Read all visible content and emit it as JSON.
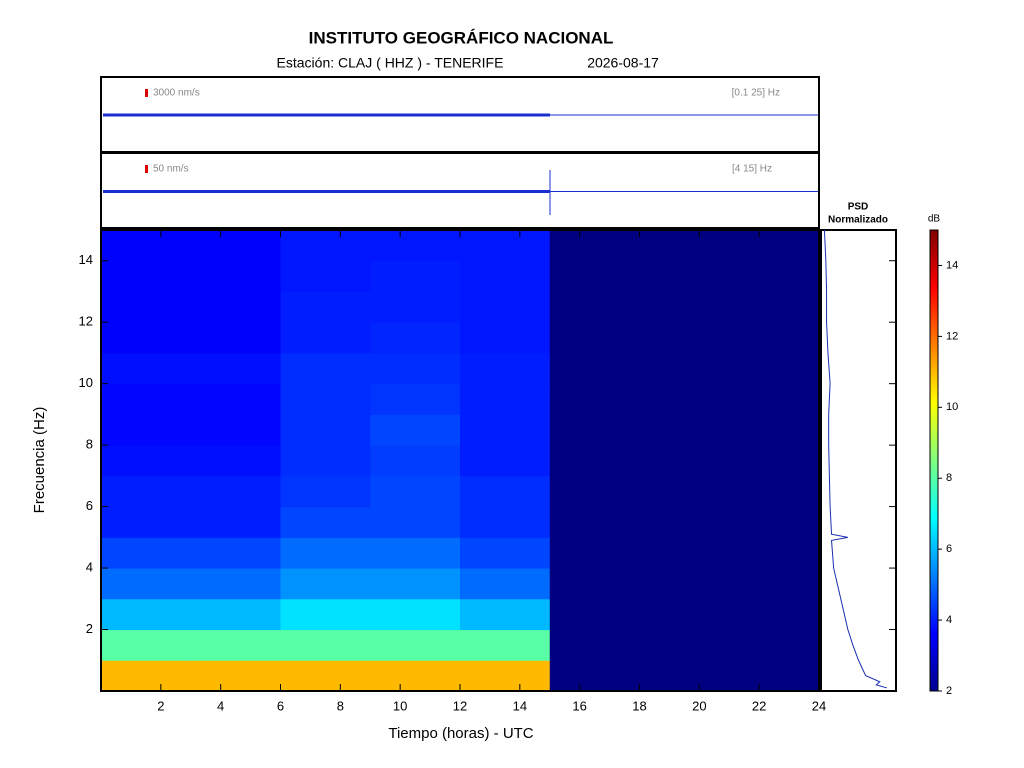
{
  "chart_data": {
    "type": "spectrogram",
    "title": "INSTITUTO GEOGRÁFICO NACIONAL",
    "station": "Estación:  CLAJ ( HHZ ) - TENERIFE",
    "date": "2026-08-17",
    "trace_labels": [
      {
        "scale": "3000 nm/s",
        "band": "[0.1 25] Hz"
      },
      {
        "scale": "50 nm/s",
        "band": "[4 15] Hz"
      }
    ],
    "x_label": "Tiempo (horas) - UTC",
    "y_label": "Frecuencia  (Hz)",
    "xlim": [
      0,
      24
    ],
    "xticks": [
      2,
      4,
      6,
      8,
      10,
      12,
      14,
      16,
      18,
      20,
      22,
      24
    ],
    "ylim": [
      0,
      15
    ],
    "yticks": [
      2,
      4,
      6,
      8,
      10,
      12,
      14
    ],
    "time_bins": [
      0,
      3,
      6,
      9,
      12,
      15,
      24
    ],
    "freq_bins": [
      0,
      1,
      2,
      3,
      4,
      5,
      6,
      7,
      8,
      9,
      10,
      11,
      12,
      13,
      14,
      15
    ],
    "z": [
      [
        11,
        11,
        11,
        11,
        11,
        2
      ],
      [
        8,
        8,
        8,
        8,
        8,
        2
      ],
      [
        6,
        6,
        6.5,
        6.5,
        6,
        2
      ],
      [
        5,
        5,
        5.5,
        5.5,
        5,
        2
      ],
      [
        4.5,
        4.5,
        5,
        5,
        4.5,
        2
      ],
      [
        4,
        4,
        4.5,
        4.5,
        4.2,
        2
      ],
      [
        4,
        4,
        4.3,
        4.5,
        4.2,
        2
      ],
      [
        3.8,
        3.8,
        4.2,
        4.4,
        4,
        2
      ],
      [
        3.7,
        3.7,
        4.2,
        4.5,
        4,
        2
      ],
      [
        3.7,
        3.7,
        4.2,
        4.3,
        4,
        2
      ],
      [
        3.8,
        3.8,
        4.2,
        4.2,
        4,
        2
      ],
      [
        3.6,
        3.6,
        4,
        4.1,
        3.9,
        2
      ],
      [
        3.6,
        3.6,
        4,
        4,
        3.9,
        2
      ],
      [
        3.6,
        3.6,
        3.9,
        4,
        3.9,
        2
      ],
      [
        3.6,
        3.6,
        3.9,
        3.9,
        3.9,
        2
      ]
    ],
    "psd_title": [
      "PSD",
      "Normalizado"
    ],
    "psd": {
      "freq": [
        0.1,
        0.2,
        0.3,
        0.5,
        1,
        1.5,
        2,
        3,
        4,
        4.9,
        5,
        5.1,
        6,
        7,
        8,
        9,
        10,
        11,
        12,
        13,
        14,
        15
      ],
      "values": [
        0.9,
        0.75,
        0.8,
        0.6,
        0.5,
        0.42,
        0.35,
        0.25,
        0.15,
        0.12,
        0.35,
        0.12,
        0.1,
        0.09,
        0.08,
        0.08,
        0.1,
        0.07,
        0.05,
        0.05,
        0.04,
        0.02
      ],
      "xlim": [
        0,
        1
      ]
    },
    "colorbar_label": "dB",
    "clim": [
      2,
      15
    ],
    "cticks": [
      2,
      4,
      6,
      8,
      10,
      12,
      14
    ]
  }
}
